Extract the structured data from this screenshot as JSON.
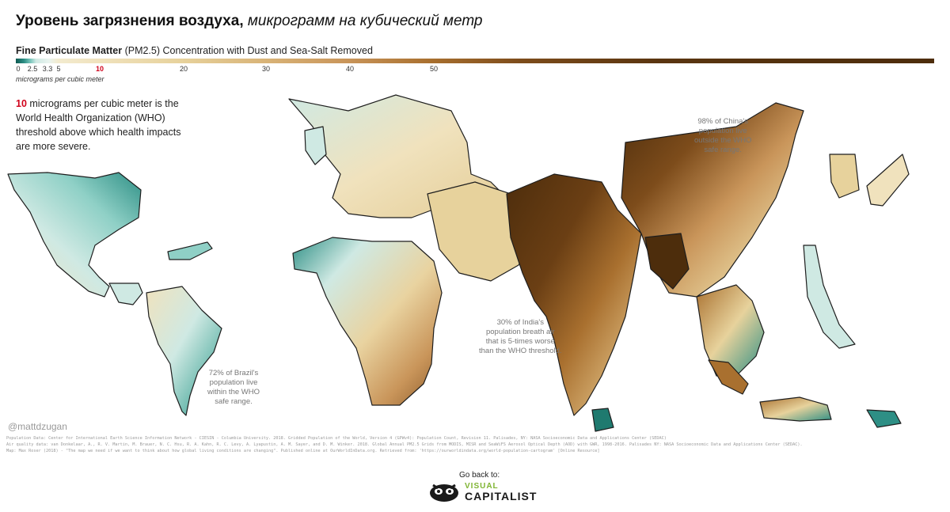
{
  "title": {
    "bold": "Уровень загрязнения воздуха,",
    "italic": "микрограмм на кубический метр"
  },
  "subtitle": {
    "bold": "Fine Particulate Matter",
    "rest": "(PM2.5) Concentration with Dust and Sea-Salt Removed"
  },
  "legend": {
    "ticks": [
      "0",
      "2.5",
      "3.3",
      "5",
      "10",
      "20",
      "30",
      "40",
      "50"
    ],
    "unit": "micrograms per cubic meter",
    "colors": {
      "low": "#0f5a52",
      "mid_low": "#cfe9e3",
      "mid": "#f0e2bd",
      "mid_high": "#c9955a",
      "high": "#4d2d0c"
    }
  },
  "who_note": {
    "value": "10",
    "text": "micrograms per cubic meter is the World Health Organization (WHO) threshold above which health impacts are more severe."
  },
  "annotations": {
    "china": [
      "98% of China's",
      "population live",
      "outside the WHO",
      "safe range."
    ],
    "india": [
      "30% of India's",
      "population breath air",
      "that is 5-times worse",
      "than the WHO threshold."
    ],
    "brazil": [
      "72% of Brazil's",
      "population live",
      "within the WHO",
      "safe range."
    ]
  },
  "attribution": "@mattdzugan",
  "sources": [
    "Population Data: Center for International Earth Science Information Network - CIESIN - Columbia University. 2018. Gridded Population of the World, Version 4 (GPWv4): Population Count, Revision 11. Palisades, NY: NASA Socioeconomic Data and Applications Center (SEDAC)",
    "Air quality data: van Donkelaar, A., R. V. Martin, M. Brauer, N. C. Hsu, R. A. Kahn, R. C. Levy, A. Lyapustin, A. M. Sayer, and D. M. Winker. 2018. Global Annual PM2.5 Grids from MODIS, MISR and SeaWiFS Aerosol Optical Depth (AOD) with GWR, 1998-2016. Palisades NY: NASA Socioeconomic Data and Applications Center (SEDAC).",
    "Map: Max Roser (2018) - \"The map we need if we want to think about how global living conditions are changing\". Published online at OurWorldInData.org. Retrieved from: 'https://ourworldindata.org/world-population-cartogram' [Online Resource]"
  ],
  "footer": {
    "go_back": "Go back to:",
    "logo_line1": "VISUAL",
    "logo_line2": "CAPITALIST"
  }
}
